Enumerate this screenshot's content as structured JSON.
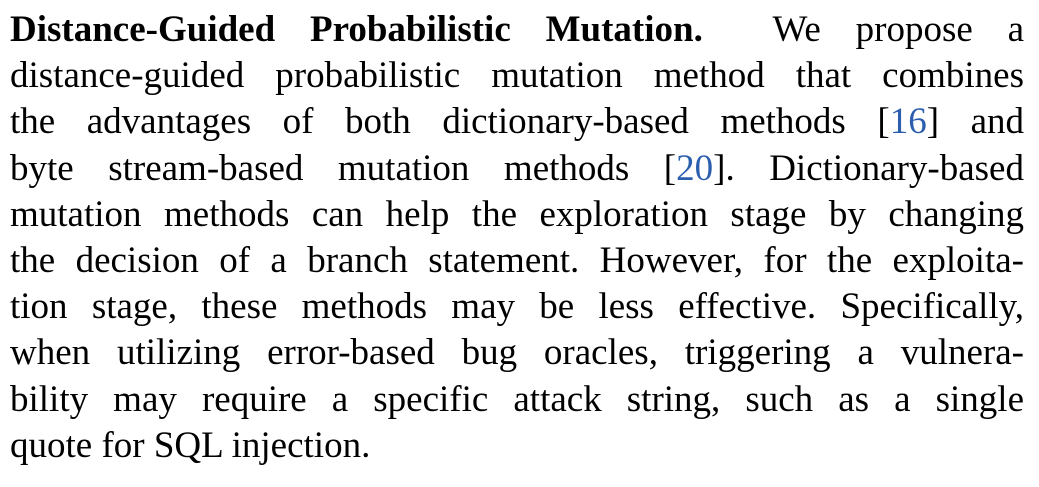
{
  "paragraph": {
    "heading": "Distance-Guided Probabilistic Mutation.",
    "line1_rest": "We propose a",
    "line2": "distance-guided probabilistic mutation method that combines",
    "line3_a": "the advantages of both dictionary-based methods [",
    "cite1": "16",
    "line3_b": "] and",
    "line4_a": "byte stream-based mutation methods [",
    "cite2": "20",
    "line4_b": "]. Dictionary-based",
    "line5": "mutation methods can help the exploration stage by changing",
    "line6": "the decision of a branch statement. However, for the exploita-",
    "line7": "tion stage, these methods may be less effective. Specifically,",
    "line8": "when utilizing error-based bug oracles, triggering a vulnera-",
    "line9": "bility may require a specific attack string, such as a single",
    "line10": "quote for SQL injection."
  },
  "colors": {
    "text": "#000000",
    "citation": "#2b5fae"
  }
}
